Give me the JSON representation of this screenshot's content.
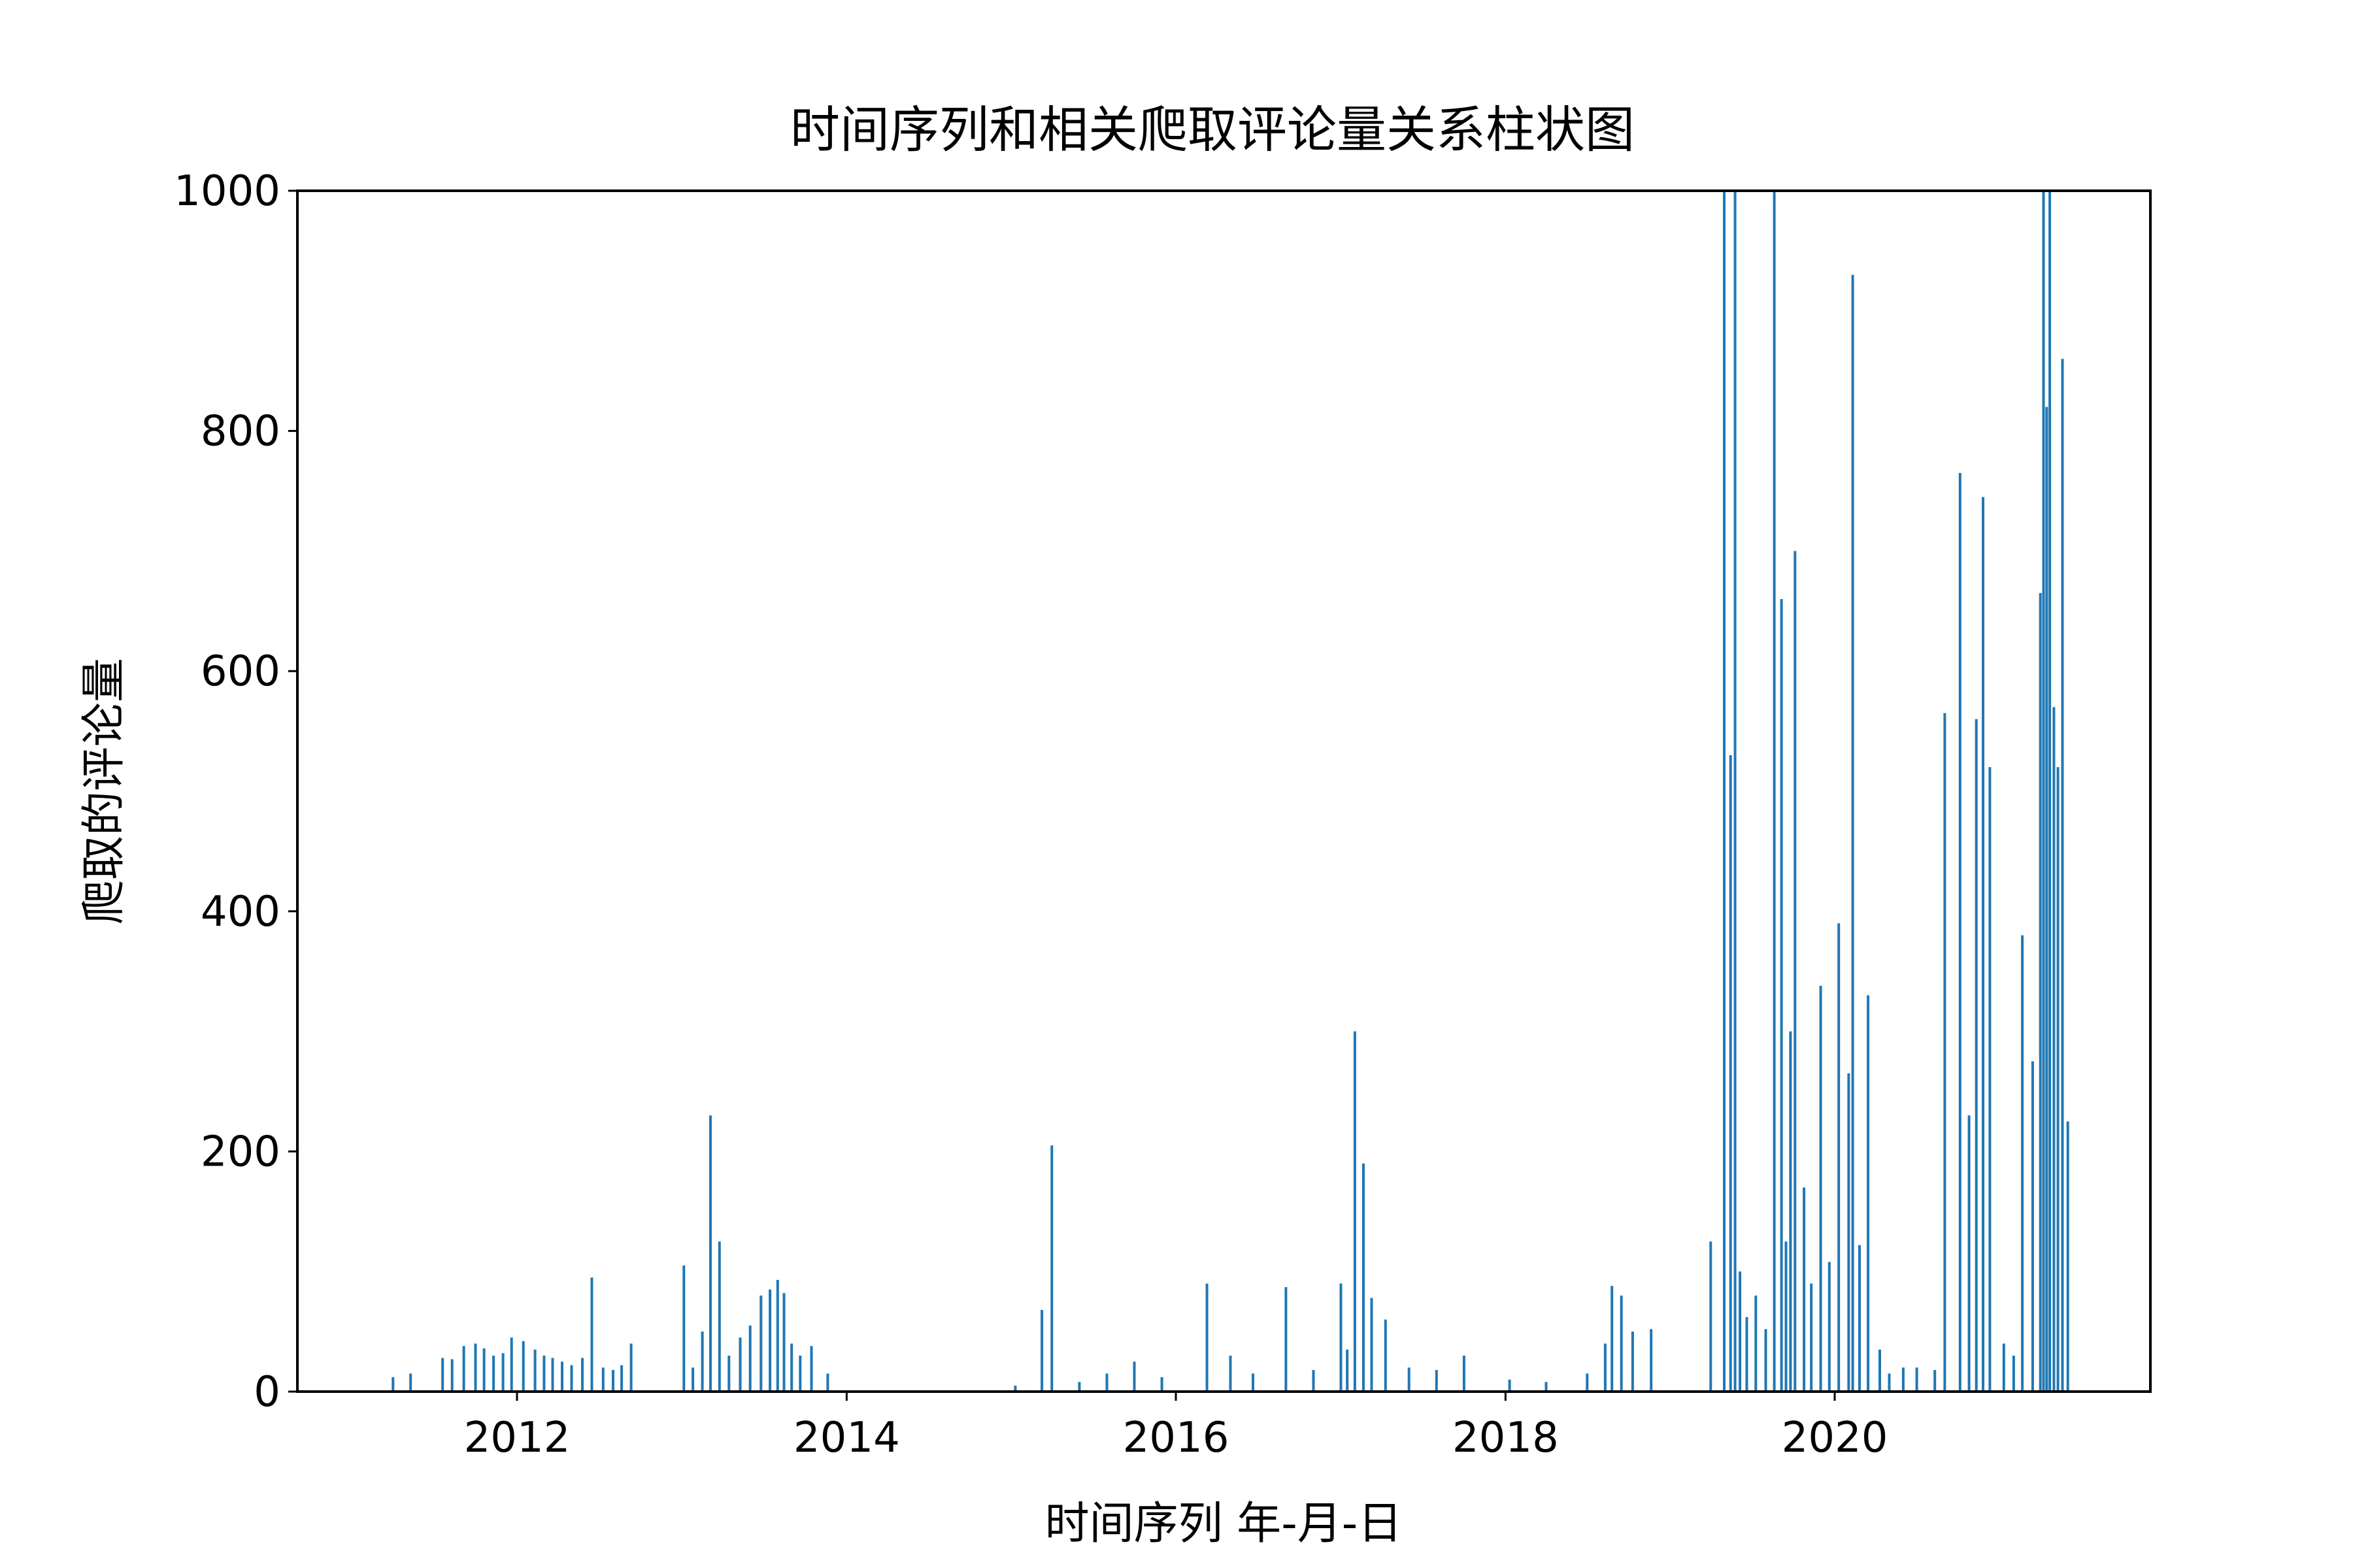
{
  "chart_data": {
    "type": "bar",
    "title": "时间序列和相关爬取评论量关系柱状图",
    "xlabel": "时间序列 年-月-日",
    "ylabel": "爬取的评论量",
    "ylim": [
      0,
      1000
    ],
    "xlim": [
      "2010-09-01",
      "2021-12-01"
    ],
    "y_ticks": [
      0,
      200,
      400,
      600,
      800,
      1000
    ],
    "x_ticks": [
      {
        "date": "2012-01-01",
        "label": "2012"
      },
      {
        "date": "2014-01-01",
        "label": "2014"
      },
      {
        "date": "2016-01-01",
        "label": "2016"
      },
      {
        "date": "2018-01-01",
        "label": "2018"
      },
      {
        "date": "2020-01-01",
        "label": "2020"
      }
    ],
    "grid": false,
    "legend": "none",
    "bar_color": "#1f77b4",
    "series": [
      {
        "x": [
          "2011-04-01",
          "2011-05-10",
          "2011-07-20",
          "2011-08-10",
          "2011-09-05",
          "2011-10-01",
          "2011-10-20",
          "2011-11-10",
          "2011-12-01",
          "2011-12-20",
          "2012-01-15",
          "2012-02-10",
          "2012-03-01",
          "2012-03-20",
          "2012-04-10",
          "2012-05-01",
          "2012-05-25",
          "2012-06-15",
          "2012-07-10",
          "2012-08-01",
          "2012-08-20",
          "2012-09-10",
          "2013-01-05",
          "2013-01-25",
          "2013-02-15",
          "2013-03-05",
          "2013-03-25",
          "2013-04-15",
          "2013-05-10",
          "2013-06-01",
          "2013-06-25",
          "2013-07-15",
          "2013-08-01",
          "2013-08-15",
          "2013-09-01",
          "2013-09-20",
          "2013-10-15",
          "2013-11-20",
          "2015-01-10",
          "2015-03-10",
          "2015-04-01",
          "2015-06-01",
          "2015-08-01",
          "2015-10-01",
          "2015-12-01",
          "2016-03-10",
          "2016-05-01",
          "2016-06-20",
          "2016-09-01",
          "2016-11-01",
          "2017-01-01",
          "2017-01-15",
          "2017-02-01",
          "2017-02-20",
          "2017-03-10",
          "2017-04-10",
          "2017-06-01",
          "2017-08-01",
          "2017-10-01",
          "2018-01-10",
          "2018-04-01",
          "2018-07-01",
          "2018-08-10",
          "2018-08-25",
          "2018-09-15",
          "2018-10-10",
          "2018-11-20",
          "2019-04-01",
          "2019-05-01",
          "2019-05-15",
          "2019-05-25",
          "2019-06-05",
          "2019-06-20",
          "2019-07-10",
          "2019-08-01",
          "2019-08-20",
          "2019-09-05",
          "2019-09-15",
          "2019-09-25",
          "2019-10-05",
          "2019-10-25",
          "2019-11-10",
          "2019-12-01",
          "2019-12-20",
          "2020-01-10",
          "2020-02-01",
          "2020-02-10",
          "2020-02-25",
          "2020-03-15",
          "2020-04-10",
          "2020-05-01",
          "2020-06-01",
          "2020-07-01",
          "2020-08-10",
          "2020-09-01",
          "2020-10-05",
          "2020-10-25",
          "2020-11-10",
          "2020-11-25",
          "2020-12-10",
          "2021-01-10",
          "2021-02-01",
          "2021-02-20",
          "2021-03-15",
          "2021-04-01",
          "2021-04-08",
          "2021-04-15",
          "2021-04-22",
          "2021-05-01",
          "2021-05-10",
          "2021-05-20",
          "2021-06-01"
        ],
        "values": [
          12,
          15,
          28,
          27,
          38,
          40,
          36,
          30,
          32,
          45,
          42,
          35,
          30,
          28,
          25,
          22,
          28,
          95,
          20,
          18,
          22,
          40,
          105,
          20,
          50,
          230,
          125,
          30,
          45,
          55,
          80,
          85,
          93,
          82,
          40,
          30,
          38,
          15,
          5,
          68,
          205,
          8,
          15,
          25,
          12,
          90,
          30,
          15,
          87,
          18,
          90,
          35,
          300,
          190,
          78,
          60,
          20,
          18,
          30,
          10,
          8,
          15,
          40,
          88,
          80,
          50,
          52,
          125,
          1000,
          530,
          1000,
          100,
          62,
          80,
          52,
          1000,
          660,
          125,
          300,
          700,
          170,
          90,
          338,
          108,
          390,
          265,
          930,
          122,
          330,
          35,
          15,
          20,
          20,
          18,
          565,
          765,
          230,
          560,
          745,
          520,
          40,
          30,
          380,
          275,
          665,
          1000,
          820,
          1000,
          570,
          520,
          860,
          225
        ]
      }
    ]
  }
}
